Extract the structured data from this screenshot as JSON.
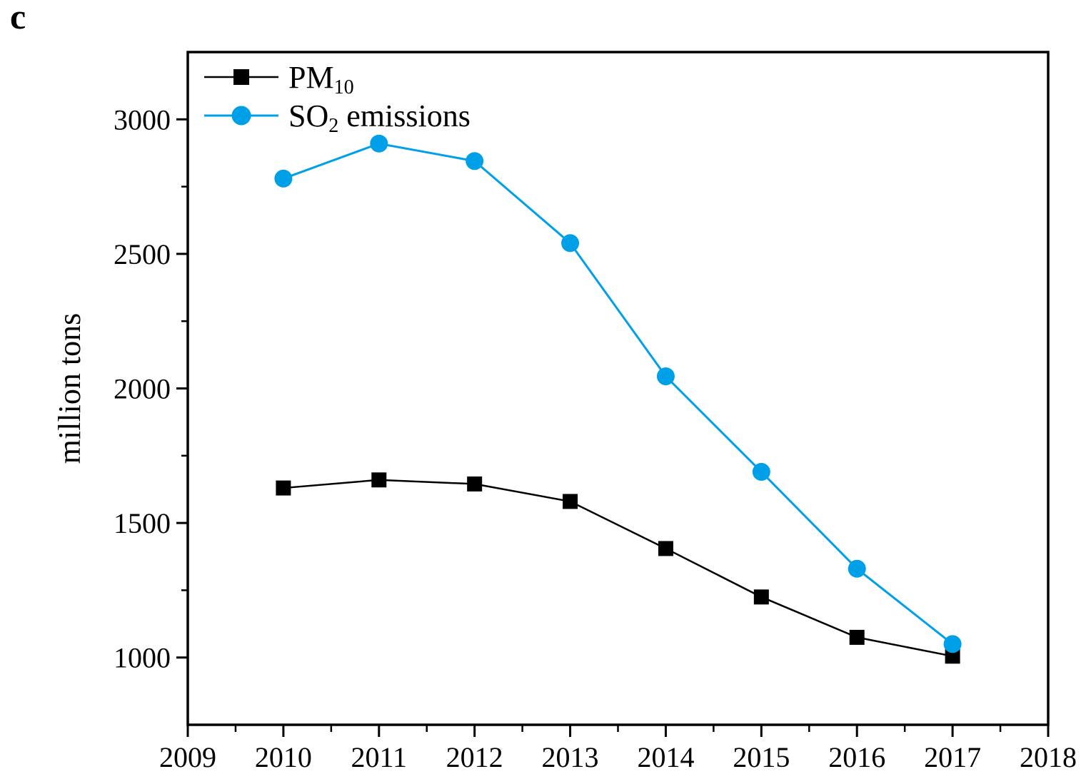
{
  "panel_label": "c",
  "colors": {
    "so2_blue": "#00A0E9",
    "pm10_black": "#000000",
    "axis": "#000000",
    "background": "#FFFFFF"
  },
  "chart_data": {
    "type": "line",
    "title": "",
    "xlabel": "",
    "ylabel": "million tons",
    "x": [
      2010,
      2011,
      2012,
      2013,
      2014,
      2015,
      2016,
      2017
    ],
    "series": [
      {
        "name": "PM10",
        "label_main": "PM",
        "label_sub": "10",
        "label_rest": "",
        "color": "#000000",
        "marker": "square",
        "values": [
          1630,
          1660,
          1645,
          1580,
          1405,
          1225,
          1075,
          1005
        ]
      },
      {
        "name": "SO2 emissions",
        "label_main": "SO",
        "label_sub": "2",
        "label_rest": " emissions",
        "color": "#00A0E9",
        "marker": "circle",
        "values": [
          2780,
          2910,
          2845,
          2540,
          2045,
          1690,
          1330,
          1050
        ]
      }
    ],
    "xlim": [
      2009,
      2018
    ],
    "ylim": [
      750,
      3250
    ],
    "x_ticks": [
      2009,
      2010,
      2011,
      2012,
      2013,
      2014,
      2015,
      2016,
      2017,
      2018
    ],
    "x_minor_ticks": [
      2009.5,
      2010.5,
      2011.5,
      2012.5,
      2013.5,
      2014.5,
      2015.5,
      2016.5,
      2017.5
    ],
    "y_ticks": [
      1000,
      1500,
      2000,
      2500,
      3000
    ],
    "y_minor_ticks": [
      1250,
      1750,
      2250,
      2750
    ],
    "grid": false,
    "legend_position": "top-left"
  }
}
